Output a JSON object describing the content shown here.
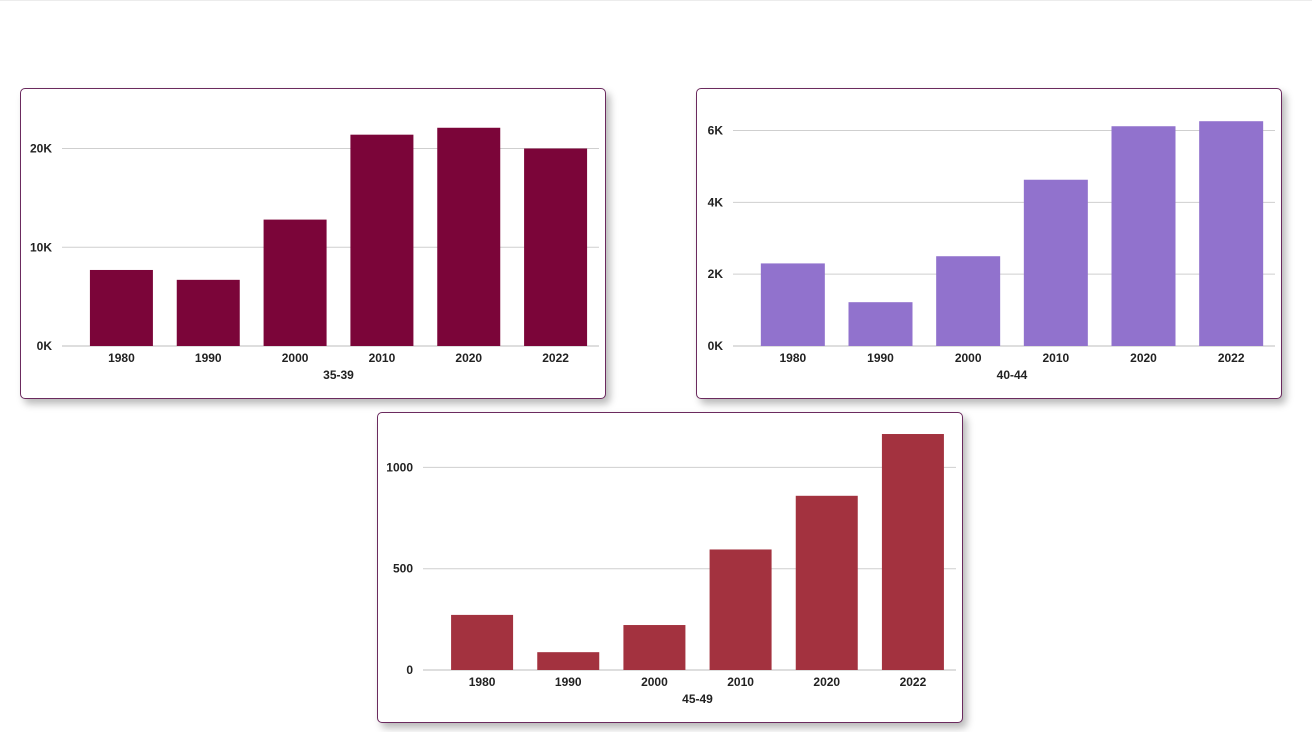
{
  "chart_data": [
    {
      "type": "bar",
      "categories": [
        "1980",
        "1990",
        "2000",
        "2010",
        "2020",
        "2022"
      ],
      "values": [
        7700,
        6700,
        12800,
        21400,
        22100,
        20000
      ],
      "xlabel": "35-39",
      "ylabel": "",
      "ylim": [
        0,
        24000
      ],
      "yticks": [
        0,
        10000,
        20000
      ],
      "ytick_labels": [
        "0K",
        "10K",
        "20K"
      ],
      "color": "#7b0539",
      "grid": true
    },
    {
      "type": "bar",
      "categories": [
        "1980",
        "1990",
        "2000",
        "2010",
        "2020",
        "2022"
      ],
      "values": [
        2300,
        1220,
        2500,
        4630,
        6120,
        6260
      ],
      "xlabel": "40-44",
      "ylabel": "",
      "ylim": [
        0,
        6600
      ],
      "yticks": [
        0,
        2000,
        4000,
        6000
      ],
      "ytick_labels": [
        "0K",
        "2K",
        "4K",
        "6K"
      ],
      "color": "#9172cd",
      "grid": true
    },
    {
      "type": "bar",
      "categories": [
        "1980",
        "1990",
        "2000",
        "2010",
        "2020",
        "2022"
      ],
      "values": [
        272,
        88,
        222,
        595,
        860,
        1165
      ],
      "xlabel": "45-49",
      "ylabel": "",
      "ylim": [
        0,
        1170
      ],
      "yticks": [
        0,
        500,
        1000
      ],
      "ytick_labels": [
        "0",
        "500",
        "1000"
      ],
      "color": "#a3323f",
      "grid": true
    }
  ]
}
